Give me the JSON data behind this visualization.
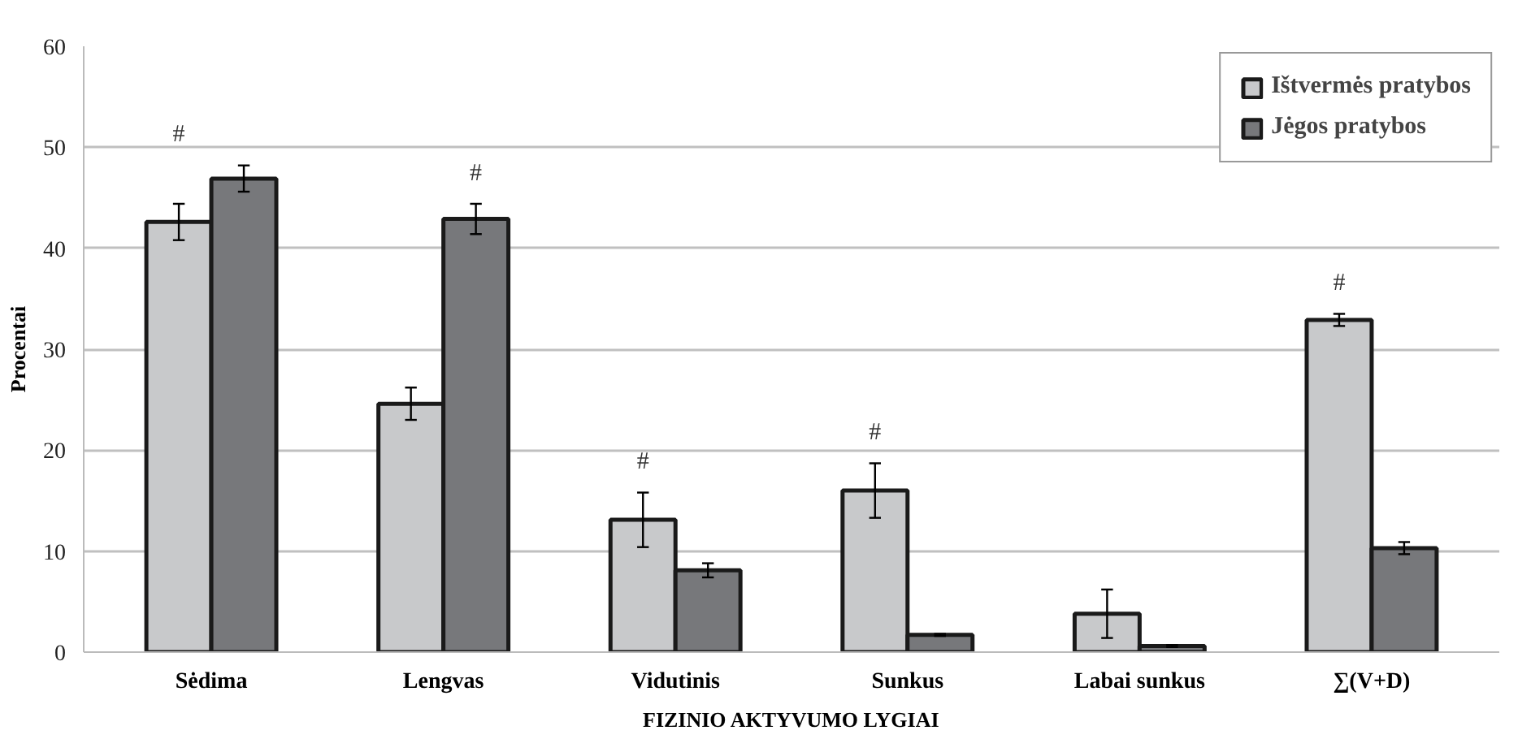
{
  "chart_data": {
    "type": "bar",
    "xlabel": "FIZINIO AKTYVUMO LYGIAI",
    "ylabel": "Procentai",
    "categories": [
      "Sėdima",
      "Lengvas",
      "Vidutinis",
      "Sunkus",
      "Labai sunkus",
      "∑(V+D)"
    ],
    "series": [
      {
        "name": "Ištvermės pratybos",
        "color": "#c8c9cb",
        "values": [
          42.6,
          24.6,
          13.1,
          16.0,
          3.8,
          32.9
        ],
        "errors": [
          1.8,
          1.6,
          2.7,
          2.7,
          2.4,
          0.6
        ],
        "value_labels": [
          "#",
          null,
          "#",
          "#",
          null,
          "#"
        ]
      },
      {
        "name": "Jėgos pratybos",
        "color": "#77787b",
        "values": [
          46.9,
          42.9,
          8.1,
          1.7,
          0.6,
          10.3
        ],
        "errors": [
          1.3,
          1.5,
          0.7,
          0.1,
          0.1,
          0.6
        ],
        "value_labels": [
          null,
          "#",
          null,
          null,
          null,
          null
        ]
      }
    ],
    "ylim": [
      0,
      60
    ],
    "yticks": [
      0,
      10,
      20,
      30,
      40,
      50,
      60
    ],
    "grid": "y",
    "legend": "top right"
  }
}
